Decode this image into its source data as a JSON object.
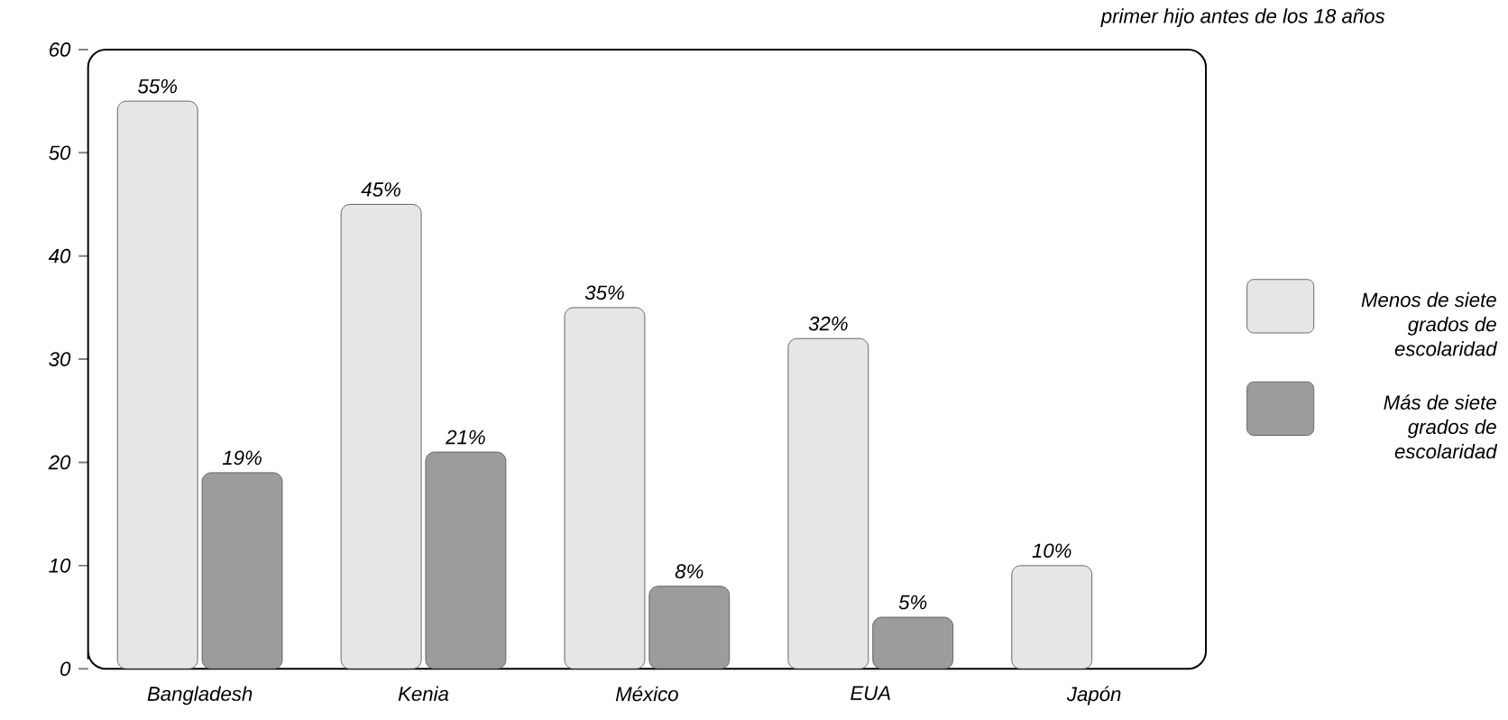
{
  "chart_data": {
    "type": "bar",
    "title": "primer hijo antes de los 18 años",
    "categories": [
      "Bangladesh",
      "Kenia",
      "México",
      "EUA",
      "Japón"
    ],
    "series": [
      {
        "name": "Menos de siete grados de escolaridad",
        "color": "#e6e6e6",
        "values": [
          55,
          45,
          35,
          32,
          10
        ],
        "value_labels": [
          "55%",
          "45%",
          "35%",
          "32%",
          "10%"
        ]
      },
      {
        "name": "Más de siete grados de escolaridad",
        "color": "#9c9c9c",
        "values": [
          19,
          21,
          8,
          5,
          null
        ],
        "value_labels": [
          "19%",
          "21%",
          "8%",
          "5%",
          null
        ]
      }
    ],
    "ylim": [
      0,
      60
    ],
    "yticks": [
      0,
      10,
      20,
      30,
      40,
      50,
      60
    ],
    "legend": "right"
  }
}
